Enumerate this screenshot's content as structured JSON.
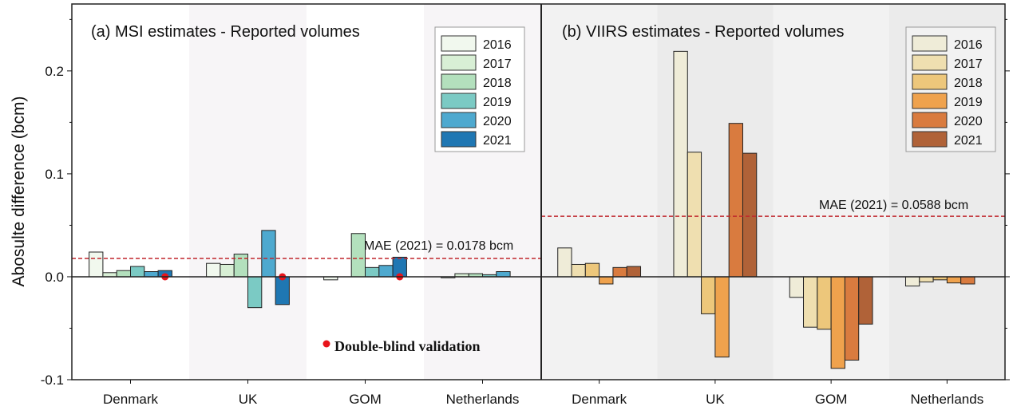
{
  "chart_data": [
    {
      "type": "bar",
      "title": "(a) MSI estimates - Reported volumes",
      "ylabel": "Abosulte difference (bcm)",
      "ylim": [
        -0.1,
        0.265
      ],
      "yticks": [
        "-0.1",
        "0.0",
        "0.1",
        "0.2"
      ],
      "ytick_values": [
        -0.1,
        0,
        0.1,
        0.2
      ],
      "categories": [
        "Denmark",
        "UK",
        "GOM",
        "Netherlands"
      ],
      "series": [
        {
          "name": "2016",
          "color": "#f1f8ee",
          "values": [
            0.024,
            0.013,
            -0.003,
            -0.001
          ]
        },
        {
          "name": "2017",
          "color": "#d8efd5",
          "values": [
            0.004,
            0.012,
            null,
            0.003
          ]
        },
        {
          "name": "2018",
          "color": "#b3e0bd",
          "values": [
            0.006,
            0.022,
            0.042,
            0.003
          ]
        },
        {
          "name": "2019",
          "color": "#7bcac4",
          "values": [
            0.01,
            -0.03,
            0.009,
            0.002
          ]
        },
        {
          "name": "2020",
          "color": "#4ea9cf",
          "values": [
            0.005,
            0.045,
            0.011,
            0.005
          ]
        },
        {
          "name": "2021",
          "color": "#1f77b3",
          "values": [
            0.006,
            -0.027,
            0.019,
            null
          ]
        }
      ],
      "mae": {
        "value": 0.0178,
        "label": "MAE (2021) = 0.0178 bcm",
        "color": "#c0272d"
      },
      "markers": {
        "label": "Double-blind validation",
        "color": "#e8141b",
        "categories": [
          "Denmark",
          "UK",
          "GOM"
        ],
        "series": "2021",
        "value": 0
      },
      "legend": "top-right"
    },
    {
      "type": "bar",
      "title": "(b) VIIRS estimates - Reported volumes",
      "ylim": [
        -0.1,
        0.265
      ],
      "categories": [
        "Denmark",
        "UK",
        "GOM",
        "Netherlands"
      ],
      "series": [
        {
          "name": "2016",
          "color": "#efecd8",
          "values": [
            0.028,
            0.219,
            -0.02,
            -0.009
          ]
        },
        {
          "name": "2017",
          "color": "#efdfb0",
          "values": [
            0.012,
            0.121,
            -0.049,
            -0.005
          ]
        },
        {
          "name": "2018",
          "color": "#edc77b",
          "values": [
            0.013,
            -0.036,
            -0.051,
            -0.003
          ]
        },
        {
          "name": "2019",
          "color": "#efa24d",
          "values": [
            -0.007,
            -0.078,
            -0.089,
            -0.006
          ]
        },
        {
          "name": "2020",
          "color": "#d97b3f",
          "values": [
            0.009,
            0.149,
            -0.081,
            -0.007
          ]
        },
        {
          "name": "2021",
          "color": "#b06238",
          "values": [
            0.01,
            0.12,
            -0.046,
            null
          ]
        }
      ],
      "mae": {
        "value": 0.0588,
        "label": "MAE (2021) = 0.0588 bcm",
        "color": "#c0272d"
      },
      "legend": "top-right"
    }
  ]
}
